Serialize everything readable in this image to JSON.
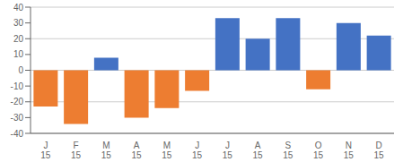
{
  "chart_data": {
    "type": "bar",
    "categories": [
      "J\n15",
      "F\n15",
      "M\n15",
      "A\n15",
      "M\n15",
      "J\n15",
      "J\n15",
      "A\n15",
      "S\n15",
      "O\n15",
      "N\n15",
      "D\n15"
    ],
    "values": [
      -23,
      -34,
      8,
      -30,
      -24,
      -13,
      33,
      20,
      33,
      -12,
      30,
      22
    ],
    "colors": [
      "#ED7D31",
      "#ED7D31",
      "#4472C4",
      "#ED7D31",
      "#ED7D31",
      "#ED7D31",
      "#4472C4",
      "#4472C4",
      "#4472C4",
      "#ED7D31",
      "#4472C4",
      "#4472C4"
    ],
    "ylim": [
      -40,
      40
    ],
    "yticks": [
      -40,
      -30,
      -20,
      -10,
      0,
      10,
      20,
      30,
      40
    ],
    "grid": true
  }
}
